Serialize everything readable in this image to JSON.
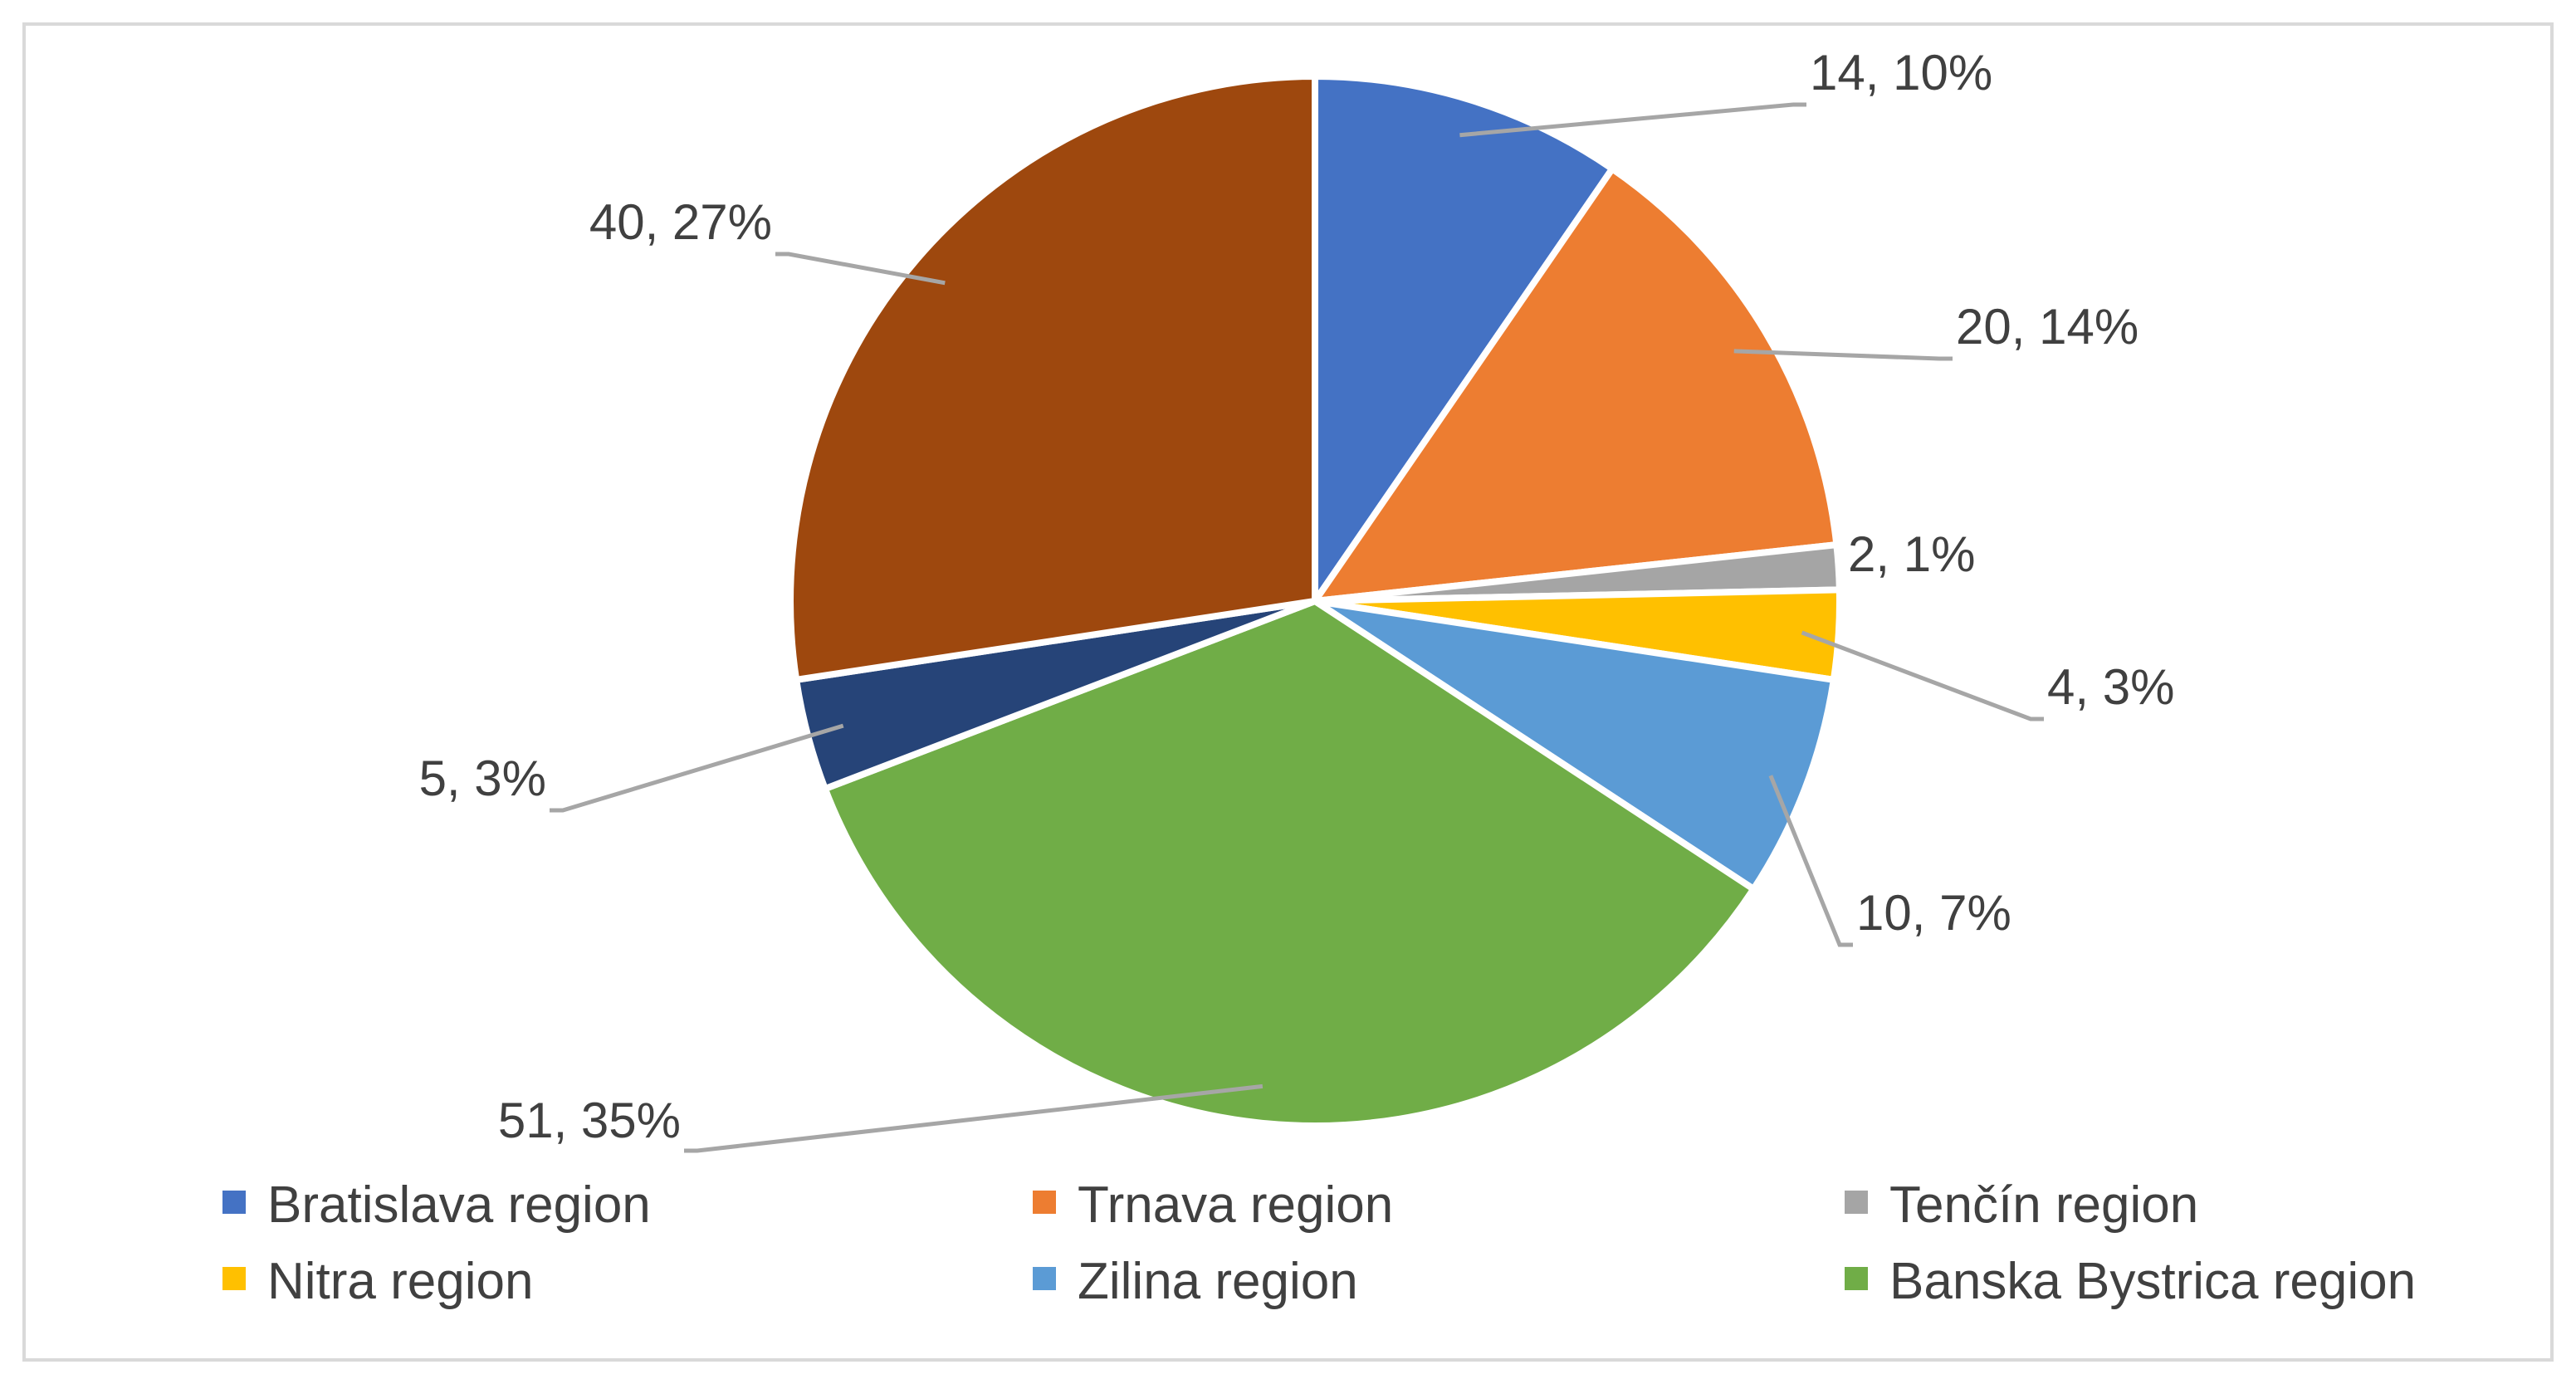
{
  "chart_data": {
    "type": "pie",
    "categories": [
      "Bratislava region",
      "Trnava region",
      "Tenčín region",
      "Nitra region",
      "Zilina region",
      "Banska Bystrica region",
      "",
      ""
    ],
    "values": [
      14,
      20,
      2,
      4,
      10,
      51,
      5,
      40
    ],
    "percent_labels": [
      "10%",
      "14%",
      "1%",
      "3%",
      "7%",
      "35%",
      "3%",
      "27%"
    ],
    "data_labels": [
      "14, 10%",
      "20, 14%",
      "2, 1%",
      "4, 3%",
      "10, 7%",
      "51, 35%",
      "5, 3%",
      "40, 27%"
    ],
    "colors": [
      "#4472C4",
      "#ED7D31",
      "#A5A5A5",
      "#FFC000",
      "#5B9BD5",
      "#70AD47",
      "#264478",
      "#9E480E"
    ],
    "legend": {
      "placement": "bottom",
      "entries": [
        "Bratislava region",
        "Trnava region",
        "Tenčín region",
        "Nitra region",
        "Zilina region",
        "Banska Bystrica region"
      ]
    },
    "title": "",
    "start_angle_deg": 0,
    "direction": "clockwise"
  }
}
